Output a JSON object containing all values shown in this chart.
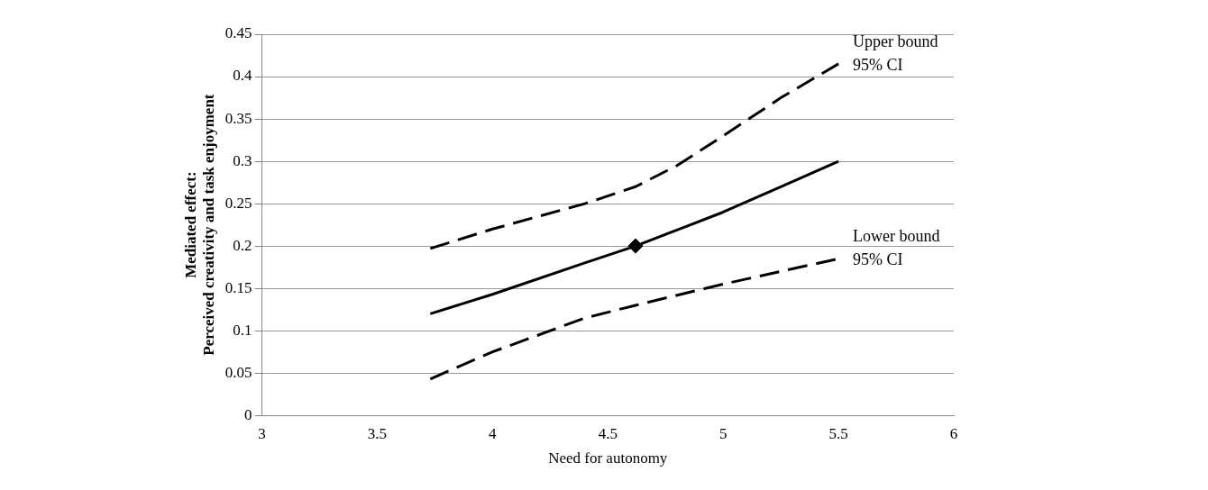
{
  "chart_data": {
    "type": "line",
    "xlabel": "Need for autonomy",
    "ylabel": "Mediated effect:\nPerceived creativity and task enjoyment",
    "xlim": [
      3,
      6
    ],
    "xticks": [
      3,
      3.5,
      4,
      4.5,
      5,
      5.5,
      6
    ],
    "ylim": [
      0,
      0.45
    ],
    "yticks": [
      0,
      0.05,
      0.1,
      0.15,
      0.2,
      0.25,
      0.3,
      0.35,
      0.4,
      0.45
    ],
    "grid": "y",
    "legend": false,
    "marker": "none",
    "series": [
      {
        "name": "Upper bound 95% CI",
        "color": "#000000",
        "line_style": "dashed",
        "x": [
          3.73,
          4.0,
          4.4,
          4.62,
          4.8,
          5.0,
          5.25,
          5.5
        ],
        "values": [
          0.197,
          0.22,
          0.25,
          0.27,
          0.295,
          0.33,
          0.375,
          0.415
        ]
      },
      {
        "color": "#000000",
        "line_style": "solid",
        "x": [
          3.73,
          4.0,
          4.4,
          4.62,
          5.0,
          5.25,
          5.5
        ],
        "values": [
          0.12,
          0.143,
          0.18,
          0.2,
          0.24,
          0.27,
          0.3
        ]
      },
      {
        "name": "Lower bound 95% CI",
        "color": "#000000",
        "line_style": "dashed",
        "x": [
          3.73,
          4.0,
          4.4,
          4.62,
          5.0,
          5.25,
          5.5
        ],
        "values": [
          0.043,
          0.075,
          0.115,
          0.13,
          0.155,
          0.17,
          0.185
        ]
      },
      {
        "type": "scatter",
        "marker": "diamond",
        "color": "#000000",
        "x": [
          4.62
        ],
        "values": [
          0.2
        ]
      }
    ]
  }
}
